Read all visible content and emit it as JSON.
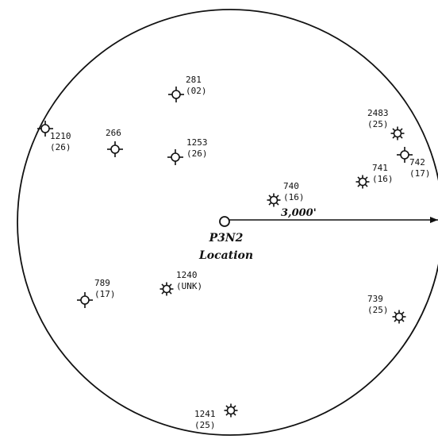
{
  "center": {
    "label_line1": "P3N2",
    "label_line2": "Location"
  },
  "scale": {
    "label": "3,000'"
  },
  "wells": [
    {
      "id": "281",
      "code": "(02)",
      "symbol": "dry-hole-icon"
    },
    {
      "id": "1210",
      "code": "(26)",
      "symbol": "dry-hole-icon"
    },
    {
      "id": "266",
      "code": "",
      "symbol": "dry-hole-icon"
    },
    {
      "id": "1253",
      "code": "(26)",
      "symbol": "dry-hole-icon"
    },
    {
      "id": "2483",
      "code": "(25)",
      "symbol": "gas-well-icon"
    },
    {
      "id": "742",
      "code": "(17)",
      "symbol": "dry-hole-icon"
    },
    {
      "id": "741",
      "code": "(16)",
      "symbol": "gas-well-icon"
    },
    {
      "id": "740",
      "code": "(16)",
      "symbol": "gas-well-icon"
    },
    {
      "id": "789",
      "code": "(17)",
      "symbol": "dry-hole-icon"
    },
    {
      "id": "1240",
      "code": "(UNK)",
      "symbol": "gas-well-icon"
    },
    {
      "id": "739",
      "code": "(25)",
      "symbol": "gas-well-icon"
    },
    {
      "id": "1241",
      "code": "(25)",
      "symbol": "gas-well-icon"
    }
  ]
}
